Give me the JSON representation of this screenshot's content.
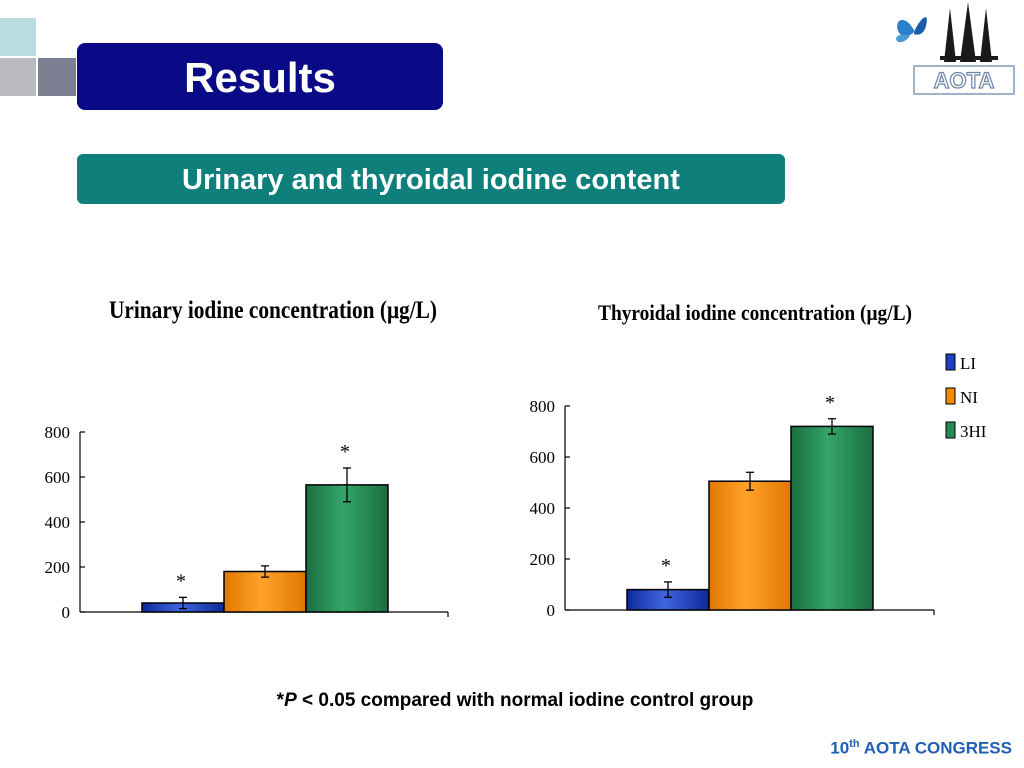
{
  "slide": {
    "title": "Results",
    "subtitle": "Urinary and thyroidal iodine content",
    "note_star": "*",
    "note_p": "P",
    "note_rest": " < 0.05 compared with normal iodine control group",
    "footer_num": "10",
    "footer_sup": "th",
    "footer_rest": " AOTA CONGRESS",
    "logo_text": "AOTA"
  },
  "colors": {
    "title_bg": "#0a0a87",
    "subtitle_bg": "#0e7f7a",
    "footer_text": "#1f5fb4",
    "LI": "#1d3fc4",
    "NI": "#f08a00",
    "3HI": "#248a52"
  },
  "chart_data": [
    {
      "type": "bar",
      "title": "Urinary iodine concentration (μg/L)",
      "categories": [
        "LI",
        "NI",
        "3HI"
      ],
      "values": [
        40,
        180,
        565
      ],
      "errors": [
        25,
        25,
        75
      ],
      "significant": [
        true,
        false,
        true
      ],
      "ylim": [
        0,
        800
      ],
      "yticks": [
        0,
        200,
        400,
        600,
        800
      ],
      "xlabel": "",
      "ylabel": "",
      "legend": false
    },
    {
      "type": "bar",
      "title": "Thyroidal iodine concentration (μg/L)",
      "categories": [
        "LI",
        "NI",
        "3HI"
      ],
      "values": [
        80,
        505,
        720
      ],
      "errors": [
        30,
        35,
        30
      ],
      "significant": [
        true,
        false,
        true
      ],
      "ylim": [
        0,
        800
      ],
      "yticks": [
        0,
        200,
        400,
        600,
        800
      ],
      "xlabel": "",
      "ylabel": "",
      "legend": true,
      "legend_position": "top-right",
      "legend_labels": [
        "LI",
        "NI",
        "3HI"
      ]
    }
  ]
}
